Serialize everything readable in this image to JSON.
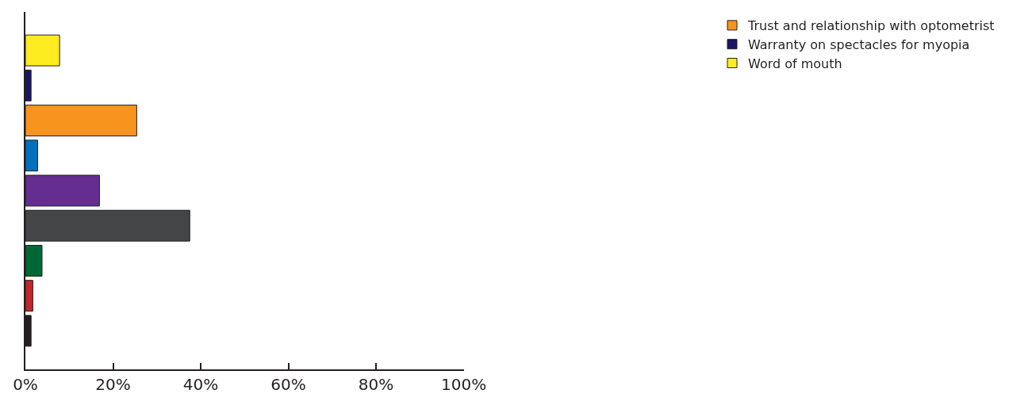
{
  "chart_data": {
    "type": "bar",
    "orientation": "horizontal",
    "categories": [
      null,
      null,
      null,
      null,
      null,
      null,
      null,
      null,
      null
    ],
    "series": [
      {
        "name": "Word of mouth",
        "color": "#fcec21",
        "values": [
          7.8,
          null,
          null,
          null,
          null,
          null,
          null,
          null,
          null
        ]
      },
      {
        "name": "Warranty on spectacles for myopia",
        "color": "#1c1464",
        "values": [
          null,
          1.3,
          null,
          null,
          null,
          null,
          null,
          null,
          null
        ]
      },
      {
        "name": "Trust and relationship with optometrist",
        "color": "#f7941d",
        "values": [
          null,
          null,
          25.4,
          null,
          null,
          null,
          null,
          null,
          null
        ]
      },
      {
        "color": "#0071bc",
        "values": [
          null,
          null,
          null,
          2.8,
          null,
          null,
          null,
          null,
          null
        ]
      },
      {
        "color": "#662d91",
        "values": [
          null,
          null,
          null,
          null,
          16.9,
          null,
          null,
          null,
          null
        ]
      },
      {
        "color": "#444547",
        "values": [
          null,
          null,
          null,
          null,
          null,
          37.5,
          null,
          null,
          null
        ]
      },
      {
        "color": "#006837",
        "values": [
          null,
          null,
          null,
          null,
          null,
          null,
          3.8,
          null,
          null
        ]
      },
      {
        "color": "#c1272d",
        "values": [
          null,
          null,
          null,
          null,
          null,
          null,
          null,
          1.7,
          null
        ]
      },
      {
        "color": "#231f20",
        "values": [
          null,
          null,
          null,
          null,
          null,
          null,
          null,
          null,
          1.3
        ]
      }
    ],
    "xlim": [
      0,
      100
    ],
    "xticks": [
      {
        "value": 0,
        "label": "0%"
      },
      {
        "value": 20,
        "label": "20%"
      },
      {
        "value": 40,
        "label": "40%"
      },
      {
        "value": 60,
        "label": "60%"
      },
      {
        "value": 80,
        "label": "80%"
      },
      {
        "value": 100,
        "label": "100%"
      }
    ],
    "legend": "top right"
  }
}
